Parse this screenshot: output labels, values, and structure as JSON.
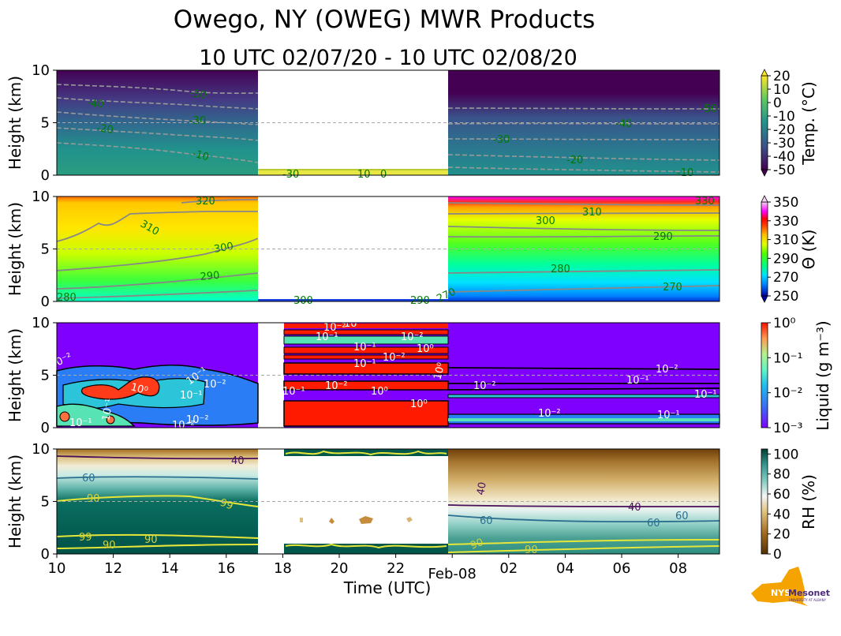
{
  "title": "Owego, NY (OWEG) MWR Products",
  "subtitle": "10 UTC 02/07/20 - 10 UTC 02/08/20",
  "xlabel": "Time (UTC)",
  "x_ticks": [
    "10",
    "12",
    "14",
    "16",
    "18",
    "20",
    "22",
    "Feb-08",
    "02",
    "04",
    "06",
    "08"
  ],
  "logo": {
    "text1": "NYS",
    "text2": "Mesonet",
    "text3": "UNIVERSITY AT ALBANY"
  },
  "colors": {
    "gray_contour": "#888888",
    "label_green": "#007a00",
    "purple_fill": "#7f00ff",
    "rh_deep": "#00574a"
  },
  "chart_data": [
    {
      "type": "heatmap",
      "name": "temperature",
      "ylabel": "Height (km)",
      "ylim": [
        0,
        10
      ],
      "y_ticks": [
        "0",
        "5",
        "10"
      ],
      "data_gap_utc_hours": [
        17.2,
        23.9
      ],
      "colorbar_label": "Temp. (°C)",
      "colorbar_ticks": [
        "20",
        "10",
        "0",
        "-10",
        "-20",
        "-30",
        "-40",
        "-50"
      ],
      "contours": [
        {
          "level": -50,
          "height_km_start": 8.5,
          "height_km_end": 6.3
        },
        {
          "level": -40,
          "height_km_start": 7.2,
          "height_km_end": 5.0
        },
        {
          "level": -30,
          "height_km_start": 5.8,
          "height_km_end": 3.3
        },
        {
          "level": -20,
          "height_km_start": 4.4,
          "height_km_end": 1.8
        },
        {
          "level": -10,
          "height_km_start": 3.0,
          "height_km_end": 0.9
        }
      ],
      "contour_labels": [
        "-50",
        "-40",
        "-30",
        "-20",
        "-10",
        "-50",
        "-40",
        "-30",
        "-20",
        "-10",
        "-30",
        "10",
        "0"
      ]
    },
    {
      "type": "heatmap",
      "name": "potential_temperature",
      "ylabel": "Height (km)",
      "ylim": [
        0,
        10
      ],
      "y_ticks": [
        "0",
        "5",
        "10"
      ],
      "colorbar_label": "Θ (K)",
      "colorbar_ticks": [
        "350",
        "330",
        "310",
        "290",
        "270",
        "250"
      ],
      "contour_labels": [
        "320",
        "310",
        "300",
        "290",
        "280",
        "330",
        "310",
        "300",
        "290",
        "280",
        "270",
        "300",
        "290",
        "270"
      ]
    },
    {
      "type": "heatmap",
      "name": "liquid",
      "ylabel": "Height (km)",
      "ylim": [
        0,
        10
      ],
      "y_ticks": [
        "0",
        "5",
        "10"
      ],
      "colorbar_label": "Liquid (g m⁻³)",
      "colorbar_ticks": [
        "10⁰",
        "10⁻¹",
        "10⁻²",
        "10⁻³"
      ],
      "contour_labels": [
        "10⁻²",
        "10⁻¹",
        "10⁻¹",
        "10⁰",
        "10⁻²",
        "10⁻¹",
        "10⁻¹",
        "10⁻²",
        "10⁻²",
        "10⁻²",
        "10⁻¹",
        "10⁻¹",
        "10⁻²",
        "10⁻¹",
        "10⁰",
        "10⁻¹",
        "10⁻²",
        "10⁰",
        "10⁰",
        "10⁻²",
        "10⁻²",
        "10⁻¹",
        "10⁻²",
        "10⁻¹",
        "10⁻¹",
        "10⁰",
        "10⁻¹",
        "10⁻²"
      ]
    },
    {
      "type": "heatmap",
      "name": "relative_humidity",
      "ylabel": "Height (km)",
      "ylim": [
        0,
        10
      ],
      "y_ticks": [
        "0",
        "5",
        "10"
      ],
      "colorbar_label": "RH (%)",
      "colorbar_ticks": [
        "100",
        "80",
        "60",
        "40",
        "20",
        "0"
      ],
      "contour_labels": [
        "40",
        "60",
        "90",
        "99",
        "99",
        "90",
        "90",
        "40",
        "40",
        "60",
        "60",
        "60",
        "90",
        "90"
      ]
    }
  ]
}
